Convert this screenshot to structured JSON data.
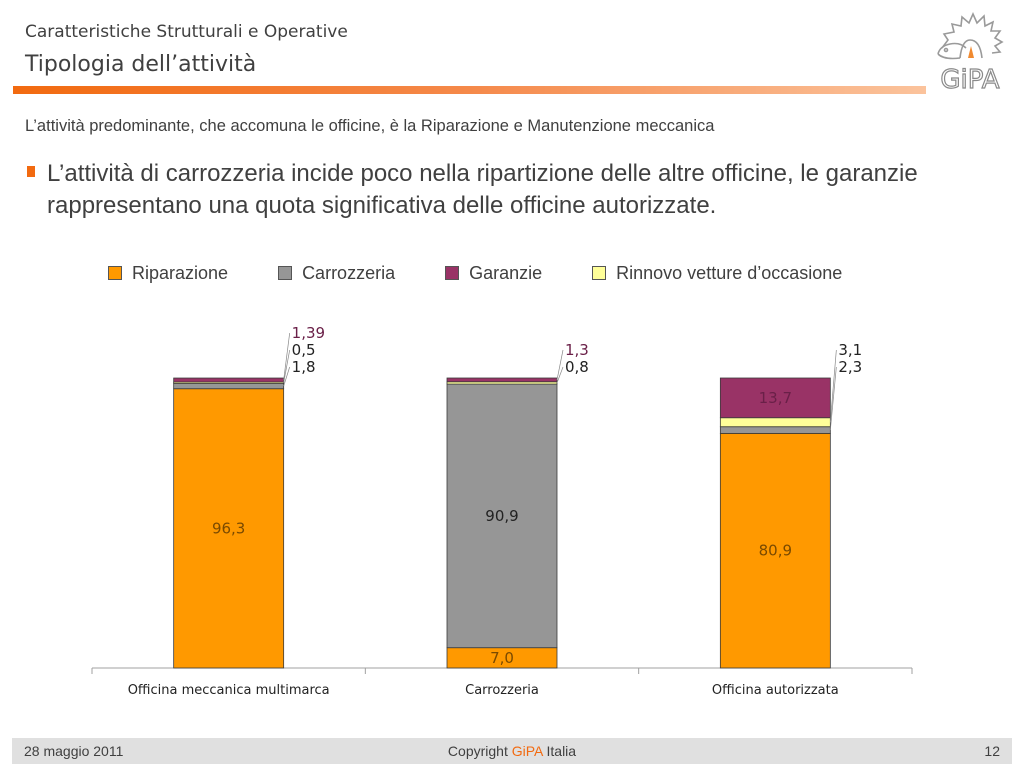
{
  "header": {
    "subtitle": "Caratteristiche Strutturali e Operative",
    "title": "Tipologia dell’attività",
    "logo_text": "GiPA"
  },
  "intro": "L’attività predominante, che accomuna le officine, è la Riparazione e Manutenzione meccanica",
  "bullet": "L’attività di carrozzeria incide poco nella ripartizione delle altre officine, le garanzie rappresentano una quota significativa delle officine autorizzate.",
  "colors": {
    "accent": "#f26a10",
    "Riparazione": "#ff9900",
    "Carrozzeria": "#969696",
    "Garanzie": "#993366",
    "Rinnovo": "#ffff99"
  },
  "chart_data": {
    "type": "bar",
    "stacked": true,
    "title": "",
    "xlabel": "",
    "ylabel": "",
    "ylim": [
      0,
      100
    ],
    "legend_position": "top",
    "categories": [
      "Officina meccanica multimarca",
      "Carrozzeria",
      "Officina autorizzata"
    ],
    "series": [
      {
        "name": "Riparazione",
        "key": "Riparazione",
        "values": [
          96.3,
          7.0,
          80.9
        ],
        "labels": [
          "96,3",
          "7,0",
          "80,9"
        ]
      },
      {
        "name": "Carrozzeria",
        "key": "Carrozzeria",
        "values": [
          1.8,
          90.9,
          2.3
        ],
        "labels": [
          "1,8",
          "90,9",
          "2,3"
        ]
      },
      {
        "name": "Rinnovo vetture d’occasione",
        "key": "Rinnovo",
        "values": [
          0.5,
          0.8,
          3.1
        ],
        "labels": [
          "0,5",
          "0,8",
          "3,1"
        ]
      },
      {
        "name": "Garanzie",
        "key": "Garanzie",
        "values": [
          1.39,
          1.3,
          13.7
        ],
        "labels": [
          "1,39",
          "1,3",
          "13,7"
        ]
      }
    ],
    "legend_order": [
      "Riparazione",
      "Carrozzeria",
      "Garanzie",
      "Rinnovo"
    ]
  },
  "legend": [
    {
      "label": "Riparazione",
      "key": "Riparazione"
    },
    {
      "label": "Carrozzeria",
      "key": "Carrozzeria"
    },
    {
      "label": "Garanzie",
      "key": "Garanzie"
    },
    {
      "label": "Rinnovo vetture d’occasione",
      "key": "Rinnovo"
    }
  ],
  "footer": {
    "date": "28 maggio 2011",
    "copyright_prefix": "Copyright",
    "copyright_brand": "GiPA",
    "copyright_suffix": "Italia",
    "page": "12"
  }
}
